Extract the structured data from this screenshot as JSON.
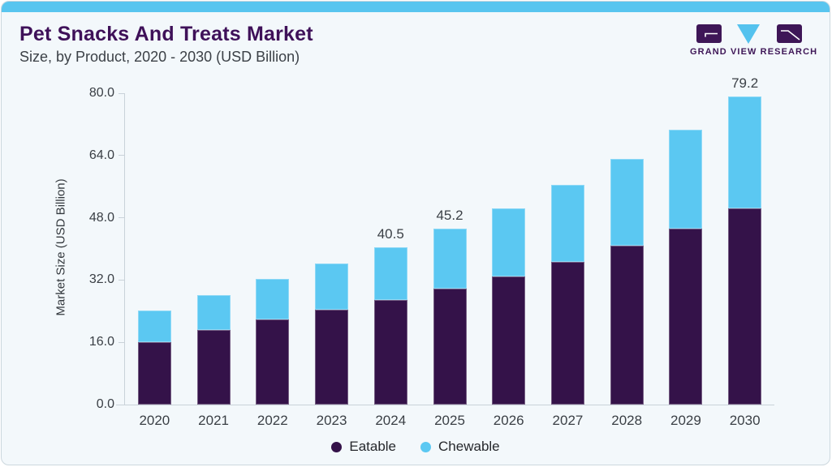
{
  "header": {
    "title": "Pet Snacks And Treats Market",
    "subtitle": "Size, by Product, 2020 - 2030 (USD Billion)",
    "logo_text": "GRAND VIEW RESEARCH"
  },
  "chart_data": {
    "type": "bar",
    "stacked": true,
    "title": "Pet Snacks And Treats Market Size, by Product, 2020 - 2030 (USD Billion)",
    "categories": [
      "2020",
      "2021",
      "2022",
      "2023",
      "2024",
      "2025",
      "2026",
      "2027",
      "2028",
      "2029",
      "2030"
    ],
    "series": [
      {
        "name": "Eatable",
        "color": "#341249",
        "values": [
          16.0,
          19.1,
          21.8,
          24.4,
          26.8,
          29.7,
          33.0,
          36.7,
          40.8,
          45.2,
          50.4
        ]
      },
      {
        "name": "Chewable",
        "color": "#5bc8f2",
        "values": [
          8.2,
          9.1,
          10.4,
          11.9,
          13.7,
          15.5,
          17.4,
          19.8,
          22.4,
          25.4,
          28.8
        ]
      }
    ],
    "bar_value_labels": [
      "",
      "",
      "",
      "",
      "40.5",
      "45.2",
      "",
      "",
      "",
      "",
      "79.2"
    ],
    "ylabel": "Market Size (USD Billion)",
    "yticks": [
      "0.0",
      "16.0",
      "32.0",
      "48.0",
      "64.0",
      "80.0"
    ],
    "ylim": [
      0,
      80
    ],
    "grid": false,
    "legend_position": "bottom"
  },
  "colors": {
    "accent_strip": "#58c5ef",
    "title_text": "#3f1159",
    "card_background": "#f3f8fb",
    "axis_line": "#c9d2d9",
    "eatable": "#341249",
    "chewable": "#5bc8f2"
  }
}
